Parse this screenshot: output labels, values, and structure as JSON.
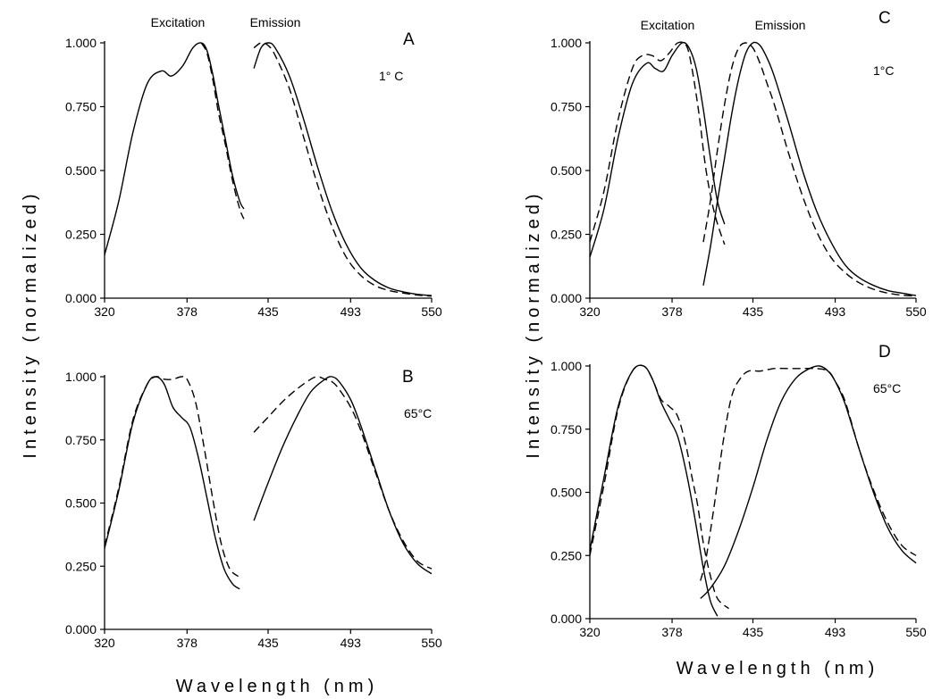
{
  "figure": {
    "ylabel_left": "Intensity (normalized)",
    "ylabel_right": "Intensity (normalized)",
    "xlabel_left": "Wavelength (nm)",
    "xlabel_right": "Wavelength (nm)",
    "band_labels": [
      "Excitation",
      "Emission"
    ]
  },
  "chart_data": [
    {
      "type": "line",
      "panel": "A",
      "annotation": "1° C",
      "xlabel": "",
      "ylabel": "",
      "xlim": [
        320,
        550
      ],
      "ylim": [
        0,
        1
      ],
      "xticks": [
        "320",
        "378",
        "435",
        "493",
        "550"
      ],
      "yticks": [
        "0.000",
        "0.250",
        "0.500",
        "0.750",
        "1.000"
      ],
      "grid": false,
      "series": [
        {
          "style": "solid",
          "x": [
            320,
            330,
            340,
            350,
            360,
            367,
            375,
            382,
            388,
            392,
            396,
            400,
            405,
            410,
            415,
            418
          ],
          "y": [
            0.17,
            0.38,
            0.65,
            0.84,
            0.89,
            0.87,
            0.91,
            0.98,
            1.0,
            0.97,
            0.88,
            0.76,
            0.62,
            0.48,
            0.38,
            0.35
          ]
        },
        {
          "style": "dashed",
          "x": [
            388,
            392,
            396,
            400,
            405,
            410,
            415,
            418
          ],
          "y": [
            1.0,
            0.96,
            0.86,
            0.73,
            0.6,
            0.46,
            0.35,
            0.31
          ]
        },
        {
          "style": "solid",
          "x": [
            425,
            430,
            435,
            440,
            450,
            460,
            470,
            480,
            490,
            500,
            510,
            520,
            530,
            540,
            550
          ],
          "y": [
            0.9,
            0.98,
            1.0,
            0.98,
            0.87,
            0.7,
            0.51,
            0.34,
            0.21,
            0.12,
            0.07,
            0.04,
            0.025,
            0.015,
            0.01
          ]
        },
        {
          "style": "dashed",
          "x": [
            425,
            430,
            435,
            440,
            450,
            460,
            470,
            480,
            490,
            500,
            510,
            520,
            530,
            540,
            550
          ],
          "y": [
            0.98,
            1.0,
            0.99,
            0.95,
            0.82,
            0.63,
            0.44,
            0.28,
            0.16,
            0.09,
            0.05,
            0.03,
            0.02,
            0.012,
            0.008
          ]
        }
      ]
    },
    {
      "type": "line",
      "panel": "B",
      "annotation": "65°C",
      "xlabel": "",
      "ylabel": "",
      "xlim": [
        320,
        550
      ],
      "ylim": [
        0,
        1
      ],
      "xticks": [
        "320",
        "378",
        "435",
        "493",
        "550"
      ],
      "yticks": [
        "0.000",
        "0.250",
        "0.500",
        "0.750",
        "1.000"
      ],
      "grid": false,
      "series": [
        {
          "style": "solid",
          "x": [
            320,
            330,
            340,
            350,
            356,
            362,
            368,
            374,
            380,
            386,
            392,
            398,
            404,
            410,
            415
          ],
          "y": [
            0.32,
            0.55,
            0.82,
            0.97,
            1.0,
            0.97,
            0.88,
            0.84,
            0.8,
            0.68,
            0.52,
            0.36,
            0.24,
            0.18,
            0.16
          ]
        },
        {
          "style": "dashed",
          "x": [
            320,
            330,
            340,
            350,
            356,
            362,
            368,
            374,
            378,
            384,
            390,
            396,
            402,
            408,
            414
          ],
          "y": [
            0.33,
            0.56,
            0.83,
            0.97,
            1.0,
            0.99,
            0.99,
            1.0,
            0.99,
            0.9,
            0.72,
            0.52,
            0.34,
            0.24,
            0.21
          ]
        },
        {
          "style": "solid",
          "x": [
            425,
            435,
            445,
            455,
            465,
            475,
            480,
            485,
            493,
            500,
            510,
            520,
            530,
            540,
            550
          ],
          "y": [
            0.43,
            0.58,
            0.72,
            0.84,
            0.94,
            0.99,
            1.0,
            0.98,
            0.91,
            0.81,
            0.64,
            0.47,
            0.34,
            0.26,
            0.22
          ]
        },
        {
          "style": "dashed",
          "x": [
            425,
            435,
            445,
            455,
            465,
            470,
            475,
            480,
            485,
            493,
            500,
            510,
            520,
            530,
            540,
            550
          ],
          "y": [
            0.78,
            0.84,
            0.9,
            0.95,
            0.99,
            1.0,
            0.99,
            0.98,
            0.95,
            0.88,
            0.79,
            0.63,
            0.47,
            0.35,
            0.27,
            0.24
          ]
        }
      ]
    },
    {
      "type": "line",
      "panel": "C",
      "annotation": "1°C",
      "xlabel": "",
      "ylabel": "",
      "xlim": [
        320,
        550
      ],
      "ylim": [
        0,
        1
      ],
      "xticks": [
        "320",
        "378",
        "435",
        "493",
        "550"
      ],
      "yticks": [
        "0.000",
        "0.250",
        "0.500",
        "0.750",
        "1.000"
      ],
      "grid": false,
      "series": [
        {
          "style": "solid",
          "x": [
            320,
            330,
            340,
            350,
            360,
            366,
            372,
            378,
            385,
            390,
            395,
            400,
            405,
            410,
            415
          ],
          "y": [
            0.16,
            0.35,
            0.63,
            0.84,
            0.92,
            0.9,
            0.89,
            0.95,
            1.0,
            0.98,
            0.9,
            0.74,
            0.55,
            0.38,
            0.29
          ]
        },
        {
          "style": "dashed",
          "x": [
            320,
            330,
            340,
            350,
            357,
            364,
            370,
            376,
            382,
            388,
            392,
            397,
            402,
            408,
            415
          ],
          "y": [
            0.22,
            0.42,
            0.7,
            0.9,
            0.95,
            0.95,
            0.93,
            0.96,
            1.0,
            0.99,
            0.9,
            0.72,
            0.5,
            0.33,
            0.21
          ]
        },
        {
          "style": "solid",
          "x": [
            400,
            405,
            410,
            415,
            420,
            425,
            430,
            435,
            440,
            445,
            450,
            460,
            470,
            480,
            490,
            500,
            510,
            520,
            530,
            540,
            550
          ],
          "y": [
            0.05,
            0.2,
            0.38,
            0.55,
            0.72,
            0.86,
            0.96,
            1.0,
            0.99,
            0.94,
            0.87,
            0.69,
            0.5,
            0.34,
            0.22,
            0.13,
            0.08,
            0.05,
            0.03,
            0.02,
            0.01
          ]
        },
        {
          "style": "dashed",
          "x": [
            400,
            405,
            410,
            415,
            420,
            425,
            430,
            435,
            440,
            445,
            450,
            460,
            470,
            480,
            490,
            500,
            510,
            520,
            530,
            540,
            550
          ],
          "y": [
            0.22,
            0.38,
            0.58,
            0.76,
            0.9,
            0.98,
            1.0,
            0.98,
            0.92,
            0.84,
            0.76,
            0.57,
            0.4,
            0.26,
            0.16,
            0.1,
            0.06,
            0.035,
            0.02,
            0.012,
            0.008
          ]
        }
      ]
    },
    {
      "type": "line",
      "panel": "D",
      "annotation": "65°C",
      "xlabel": "",
      "ylabel": "",
      "xlim": [
        320,
        550
      ],
      "ylim": [
        0,
        1
      ],
      "xticks": [
        "320",
        "378",
        "435",
        "493",
        "550"
      ],
      "yticks": [
        "0.000",
        "0.250",
        "0.500",
        "0.750",
        "1.000"
      ],
      "grid": false,
      "series": [
        {
          "style": "solid",
          "x": [
            320,
            330,
            340,
            350,
            358,
            364,
            370,
            376,
            382,
            388,
            394,
            400,
            405,
            410
          ],
          "y": [
            0.27,
            0.56,
            0.84,
            0.98,
            1.0,
            0.95,
            0.86,
            0.79,
            0.72,
            0.58,
            0.4,
            0.2,
            0.07,
            0.01
          ]
        },
        {
          "style": "dashed",
          "x": [
            320,
            330,
            340,
            350,
            358,
            364,
            370,
            376,
            382,
            388,
            392,
            396,
            400,
            405,
            410,
            418
          ],
          "y": [
            0.25,
            0.53,
            0.83,
            0.98,
            1.0,
            0.95,
            0.87,
            0.84,
            0.8,
            0.68,
            0.56,
            0.45,
            0.3,
            0.17,
            0.08,
            0.04
          ]
        },
        {
          "style": "solid",
          "x": [
            398,
            405,
            415,
            425,
            435,
            445,
            455,
            465,
            475,
            482,
            488,
            493,
            500,
            510,
            520,
            530,
            540,
            550
          ],
          "y": [
            0.08,
            0.12,
            0.21,
            0.35,
            0.52,
            0.71,
            0.86,
            0.95,
            0.99,
            1.0,
            0.98,
            0.94,
            0.85,
            0.67,
            0.5,
            0.36,
            0.27,
            0.22
          ]
        },
        {
          "style": "dashed",
          "x": [
            398,
            402,
            408,
            414,
            420,
            426,
            432,
            440,
            450,
            460,
            470,
            480,
            488,
            493,
            500,
            510,
            520,
            530,
            540,
            550
          ],
          "y": [
            0.15,
            0.24,
            0.46,
            0.7,
            0.88,
            0.95,
            0.98,
            0.98,
            0.99,
            0.99,
            0.99,
            0.99,
            0.98,
            0.94,
            0.86,
            0.67,
            0.51,
            0.38,
            0.29,
            0.25
          ]
        }
      ]
    }
  ]
}
